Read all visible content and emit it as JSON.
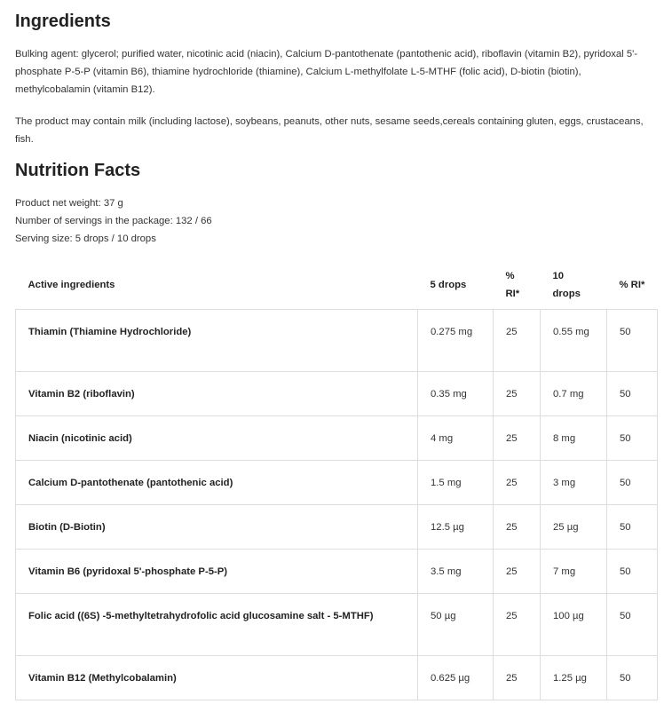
{
  "ingredients": {
    "title": "Ingredients",
    "composition": "Bulking agent: glycerol; purified water, nicotinic acid (niacin), Calcium D-pantothenate (pantothenic acid), riboflavin (vitamin B2), pyridoxal 5'-phosphate P-5-P (vitamin B6), thiamine hydrochloride (thiamine), Calcium L-methylfolate L-5-MTHF (folic acid), D-biotin (biotin), methylcobalamin (vitamin B12).",
    "allergens": "The product may contain milk (including lactose), soybeans, peanuts, other nuts, sesame seeds,cereals containing gluten, eggs, crustaceans, fish."
  },
  "nutrition": {
    "title": "Nutrition Facts",
    "facts": [
      "Product net weight: 37 g",
      "Number of servings in the package: 132 / 66",
      "Serving size: 5 drops / 10 drops"
    ],
    "headers": [
      "Active ingredients",
      "5 drops",
      "% RI*",
      "10 drops",
      "% RI*"
    ],
    "rows": [
      [
        "Thiamin (Thiamine Hydrochloride)",
        "0.275 mg",
        "25",
        "0.55 mg",
        "50"
      ],
      [
        "Vitamin B2 (riboflavin)",
        "0.35 mg",
        "25",
        "0.7 mg",
        "50"
      ],
      [
        "Niacin (nicotinic acid)",
        "4 mg",
        "25",
        "8 mg",
        "50"
      ],
      [
        "Calcium D-pantothenate (pantothenic acid)",
        "1.5 mg",
        "25",
        "3 mg",
        "50"
      ],
      [
        "Biotin (D-Biotin)",
        "12.5 µg",
        "25",
        "25 µg",
        "50"
      ],
      [
        "Vitamin B6 (pyridoxal 5'-phosphate P-5-P)",
        "3.5 mg",
        "25",
        "7 mg",
        "50"
      ],
      [
        "Folic acid ((6S) -5-methyltetrahydrofolic acid glucosamine salt - 5-MTHF)",
        "50 µg",
        "25",
        "100 µg",
        "50"
      ],
      [
        "Vitamin B12 (Methylcobalamin)",
        "0.625 µg",
        "25",
        "1.25 µg",
        "50"
      ]
    ]
  }
}
